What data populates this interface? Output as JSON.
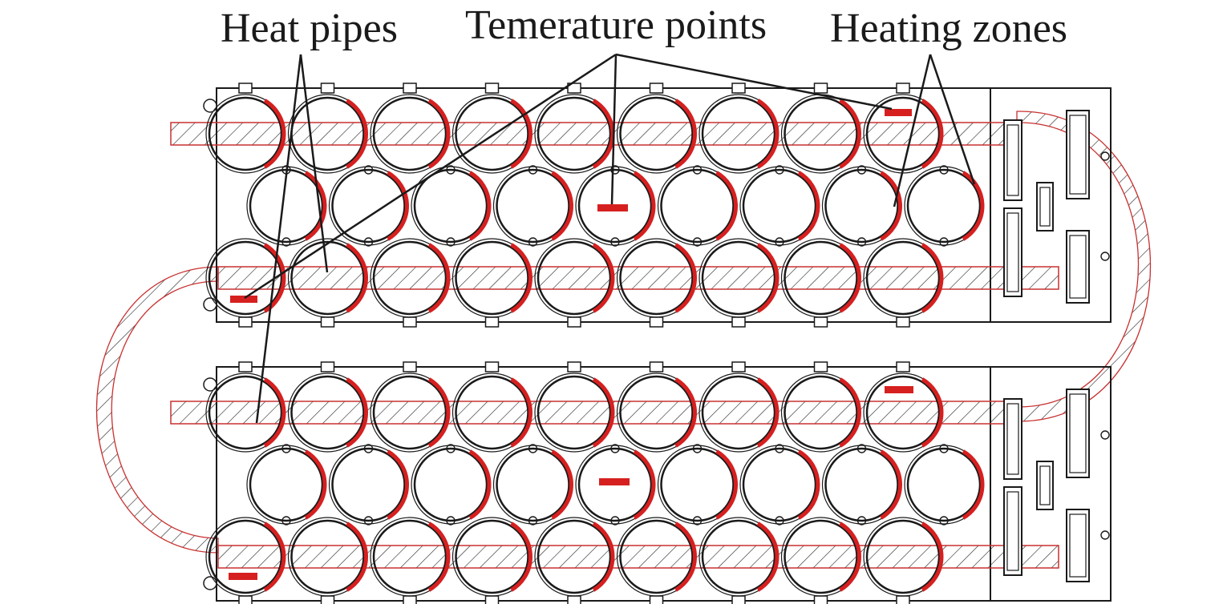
{
  "labels": {
    "heat_pipes": "Heat pipes",
    "temperature_points": "Temerature points",
    "heating_zones": "Heating zones"
  },
  "colors": {
    "line": "#1a1a1a",
    "accent": "#d62020",
    "pipe_outline": "#c83030"
  },
  "modules": 2,
  "cells_per_row": [
    9,
    9,
    9
  ]
}
